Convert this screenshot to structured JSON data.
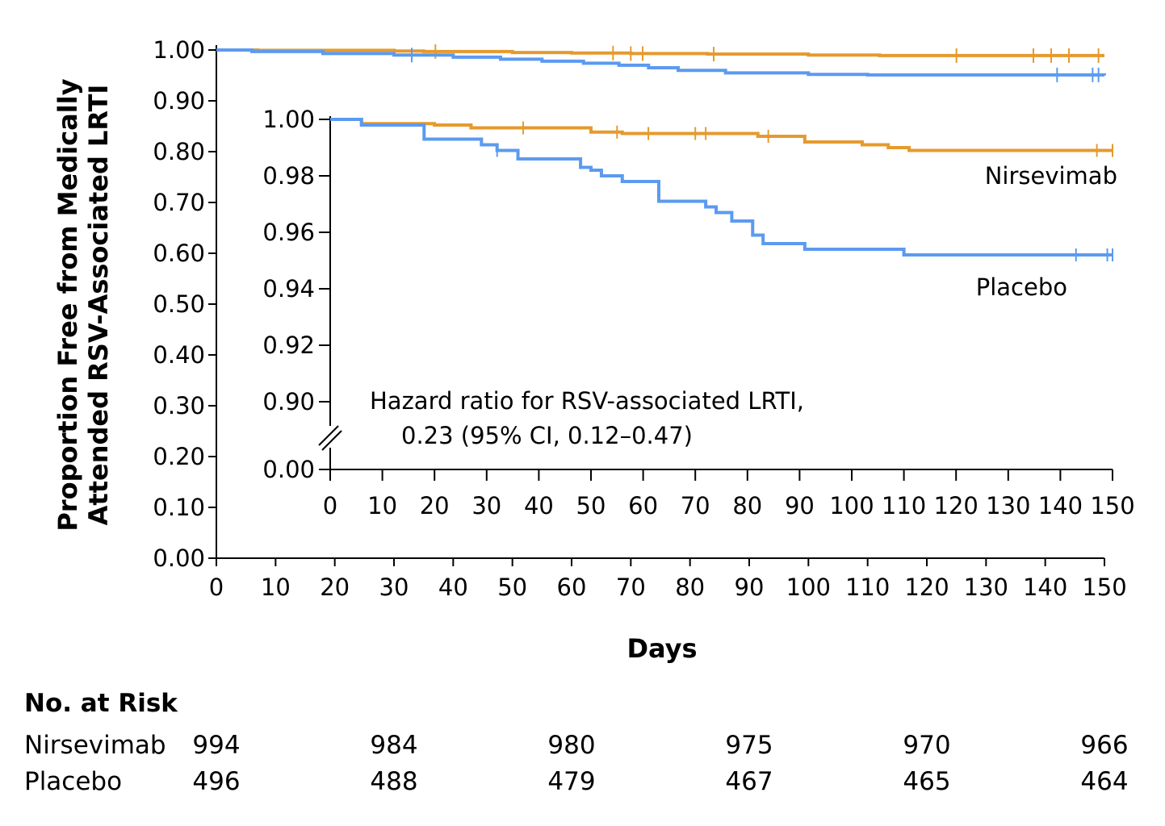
{
  "chart_data": [
    {
      "type": "line",
      "title": "",
      "xlabel": "Days",
      "ylabel_line1": "Proportion Free from Medically",
      "ylabel_line2": "Attended RSV-Associated LRTI",
      "xlim": [
        0,
        150
      ],
      "ylim": [
        0,
        1
      ],
      "x_ticks": [
        0,
        10,
        20,
        30,
        40,
        50,
        60,
        70,
        80,
        90,
        100,
        110,
        120,
        130,
        140,
        150
      ],
      "x_tick_labels": [
        "0",
        "10",
        "20",
        "30",
        "40",
        "50",
        "60",
        "70",
        "80",
        "90",
        "100",
        "110",
        "120",
        "130",
        "140",
        "150"
      ],
      "y_ticks": [
        0,
        0.1,
        0.2,
        0.3,
        0.4,
        0.5,
        0.6,
        0.7,
        0.8,
        0.9,
        1.0
      ],
      "y_tick_labels": [
        "0.00",
        "0.10",
        "0.20",
        "0.30",
        "0.40",
        "0.50",
        "0.60",
        "0.70",
        "0.80",
        "0.90",
        "1.00"
      ],
      "grid": false,
      "series": [
        {
          "name": "Nirsevimab",
          "color": "#E59A2E",
          "step_x": [
            0,
            7,
            30,
            35,
            50,
            60,
            70,
            83,
            100,
            112,
            150
          ],
          "step_y": [
            1.0,
            0.9995,
            0.998,
            0.997,
            0.995,
            0.994,
            0.993,
            0.992,
            0.99,
            0.989,
            0.989
          ],
          "censor_x": [
            37,
            67,
            70,
            72,
            84,
            125,
            138,
            141,
            144,
            149
          ]
        },
        {
          "name": "Placebo",
          "color": "#5B9AF0",
          "step_x": [
            0,
            6,
            18,
            30,
            40,
            48,
            55,
            62,
            68,
            73,
            78,
            86,
            100,
            110,
            150
          ],
          "step_y": [
            1.0,
            0.997,
            0.993,
            0.99,
            0.986,
            0.982,
            0.978,
            0.974,
            0.97,
            0.965,
            0.96,
            0.955,
            0.952,
            0.951,
            0.95
          ],
          "censor_x": [
            33,
            142,
            148,
            149
          ]
        }
      ]
    },
    {
      "type": "line",
      "title": "",
      "xlabel": "",
      "ylabel": "",
      "xlim": [
        0,
        150
      ],
      "ylim": [
        0.9,
        1.0
      ],
      "axis_break": true,
      "x_ticks": [
        0,
        10,
        20,
        30,
        40,
        50,
        60,
        70,
        80,
        90,
        100,
        110,
        120,
        130,
        140,
        150
      ],
      "x_tick_labels": [
        "0",
        "10",
        "20",
        "30",
        "40",
        "50",
        "60",
        "70",
        "80",
        "90",
        "100",
        "110",
        "120",
        "130",
        "140",
        "150"
      ],
      "y_ticks": [
        0.9,
        0.92,
        0.94,
        0.96,
        0.98,
        1.0
      ],
      "y_tick_labels": [
        "0.90",
        "0.92",
        "0.94",
        "0.96",
        "0.98",
        "1.00"
      ],
      "break_tick_label": "0.00",
      "grid": false,
      "annotation_line1": "Hazard ratio for RSV-associated LRTI,",
      "annotation_line2": "0.23 (95% CI, 0.12–0.47)",
      "series": [
        {
          "name": "Nirsevimab",
          "color": "#E59A2E",
          "step_x": [
            0,
            6,
            20,
            27,
            50,
            56,
            82,
            91,
            102,
            107,
            111,
            150
          ],
          "step_y": [
            1.0,
            0.9985,
            0.998,
            0.997,
            0.9955,
            0.995,
            0.994,
            0.992,
            0.991,
            0.99,
            0.989,
            0.989
          ],
          "censor_x": [
            37,
            55,
            61,
            70,
            72,
            84,
            147,
            150
          ],
          "label": "Nirsevimab"
        },
        {
          "name": "Placebo",
          "color": "#5B9AF0",
          "step_x": [
            0,
            6,
            18,
            29,
            32,
            36,
            48,
            50,
            52,
            56,
            63,
            72,
            74,
            77,
            81,
            83,
            91,
            110,
            150
          ],
          "step_y": [
            1.0,
            0.998,
            0.993,
            0.991,
            0.989,
            0.986,
            0.983,
            0.982,
            0.98,
            0.978,
            0.971,
            0.969,
            0.967,
            0.964,
            0.959,
            0.956,
            0.954,
            0.952,
            0.952
          ],
          "censor_x": [
            32,
            143,
            149,
            150
          ],
          "label": "Placebo"
        }
      ]
    }
  ],
  "risk_table": {
    "title": "No. at Risk",
    "days": [
      0,
      30,
      60,
      90,
      120,
      150
    ],
    "rows": [
      {
        "label": "Nirsevimab",
        "values": [
          "994",
          "984",
          "980",
          "975",
          "970",
          "966"
        ]
      },
      {
        "label": "Placebo",
        "values": [
          "496",
          "488",
          "479",
          "467",
          "465",
          "464"
        ]
      }
    ]
  }
}
